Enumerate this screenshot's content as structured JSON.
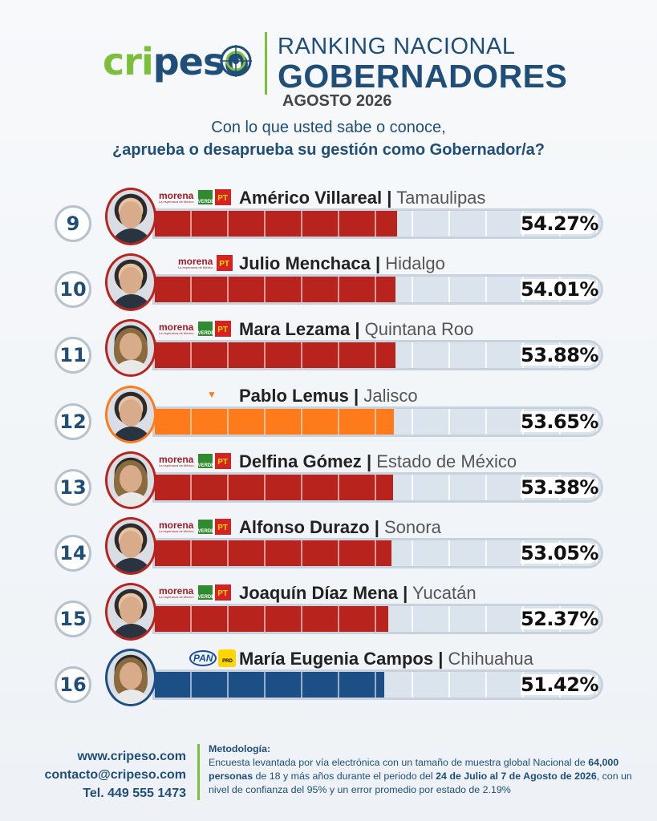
{
  "brand": {
    "logo_left": "cri",
    "logo_right": "peso"
  },
  "header": {
    "title_line1": "RANKING NACIONAL",
    "title_line2": "GOBERNADORES",
    "period": "AGOSTO 2026"
  },
  "question": {
    "line1": "Con lo que usted sabe o conoce,",
    "line2": "¿aprueba o desaprueba su gestión como Gobernador/a?"
  },
  "chart_data": {
    "type": "bar",
    "orientation": "horizontal",
    "xlim": [
      0,
      100
    ],
    "unit": "%",
    "rows": [
      {
        "rank": "9",
        "name": "Américo Villareal",
        "state": "Tamaulipas",
        "value": 54.27,
        "label": "54.27%",
        "parties": [
          "morena",
          "verde",
          "pt"
        ],
        "color": "#b8231e",
        "photo": "male"
      },
      {
        "rank": "10",
        "name": "Julio Menchaca",
        "state": "Hidalgo",
        "value": 54.01,
        "label": "54.01%",
        "parties": [
          "morena",
          "pt"
        ],
        "color": "#b8231e",
        "photo": "male"
      },
      {
        "rank": "11",
        "name": "Mara Lezama",
        "state": "Quintana Roo",
        "value": 53.88,
        "label": "53.88%",
        "parties": [
          "morena",
          "verde",
          "pt"
        ],
        "color": "#b8231e",
        "photo": "female"
      },
      {
        "rank": "12",
        "name": "Pablo Lemus",
        "state": "Jalisco",
        "value": 53.65,
        "label": "53.65%",
        "parties": [
          "mc"
        ],
        "color": "#ff7a1a",
        "photo": "male"
      },
      {
        "rank": "13",
        "name": "Delfina Gómez",
        "state": "Estado de México",
        "value": 53.38,
        "label": "53.38%",
        "parties": [
          "morena",
          "verde",
          "pt"
        ],
        "color": "#b8231e",
        "photo": "female"
      },
      {
        "rank": "14",
        "name": "Alfonso Durazo",
        "state": "Sonora",
        "value": 53.05,
        "label": "53.05%",
        "parties": [
          "morena",
          "verde",
          "pt"
        ],
        "color": "#b8231e",
        "photo": "male"
      },
      {
        "rank": "15",
        "name": "Joaquín Díaz Mena",
        "state": "Yucatán",
        "value": 52.37,
        "label": "52.37%",
        "parties": [
          "morena",
          "verde",
          "pt"
        ],
        "color": "#b8231e",
        "photo": "male"
      },
      {
        "rank": "16",
        "name": "María Eugenia Campos",
        "state": "Chihuahua",
        "value": 51.42,
        "label": "51.42%",
        "parties": [
          "pan",
          "prd"
        ],
        "color": "#1c4f86",
        "photo": "female"
      }
    ]
  },
  "party_logos": {
    "morena": {
      "name": "morena",
      "tagline": "La esperanza de México"
    },
    "verde": {
      "name": "VERDE"
    },
    "pt": {
      "name": "PT"
    },
    "mc": {
      "name": "MOVIMIENTO CIUDADANO"
    },
    "pan": {
      "name": "PAN"
    },
    "prd": {
      "name": "PRD"
    }
  },
  "footer": {
    "web": "www.cripeso.com",
    "email": "contacto@cripeso.com",
    "phone": "Tel. 449 555 1473",
    "methodology_title": "Metodología:",
    "methodology_text_1": "Encuesta levantada por vía electrónica con un tamaño de muestra global Nacional de ",
    "methodology_bold_1": "64,000 personas",
    "methodology_text_2": " de 18 y más años durante el periodo del ",
    "methodology_bold_2": "24 de Julio al 7 de Agosto de 2026",
    "methodology_text_3": ", con un nivel de confianza del 95% y un error promedio por estado de 2.19%"
  }
}
